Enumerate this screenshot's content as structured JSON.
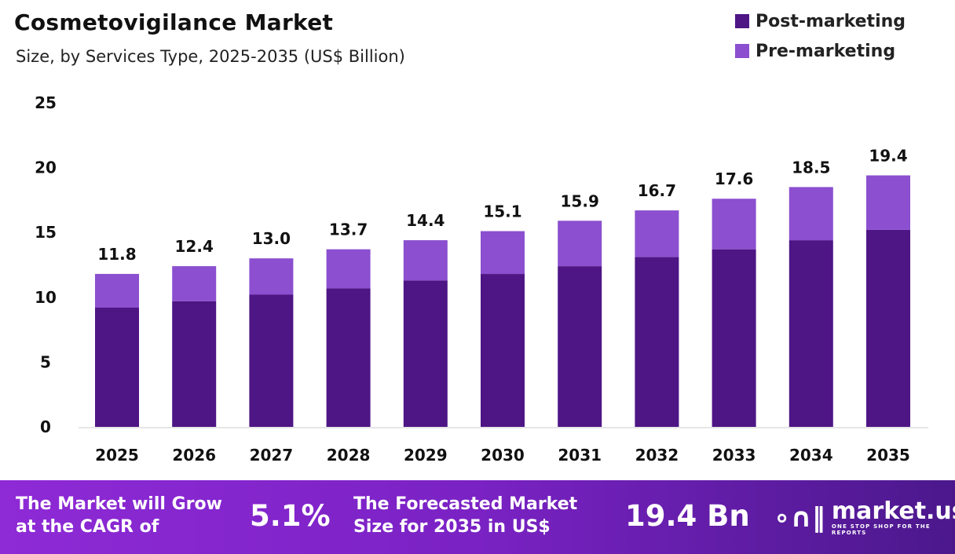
{
  "chart_data": {
    "type": "bar",
    "stacked": true,
    "title": "Cosmetovigilance Market",
    "subtitle": "Size, by Services Type, 2025-2035 (US$ Billion)",
    "categories": [
      "2025",
      "2026",
      "2027",
      "2028",
      "2029",
      "2030",
      "2031",
      "2032",
      "2033",
      "2034",
      "2035"
    ],
    "series": [
      {
        "name": "Post-marketing",
        "color": "#4e1585",
        "values": [
          9.2,
          9.7,
          10.2,
          10.7,
          11.3,
          11.8,
          12.4,
          13.1,
          13.7,
          14.4,
          15.2
        ]
      },
      {
        "name": "Pre-marketing",
        "color": "#8b4fcf",
        "values": [
          2.6,
          2.7,
          2.8,
          3.0,
          3.1,
          3.3,
          3.5,
          3.6,
          3.9,
          4.1,
          4.2
        ]
      }
    ],
    "totals": [
      "11.8",
      "12.4",
      "13.0",
      "13.7",
      "14.4",
      "15.1",
      "15.9",
      "16.7",
      "17.6",
      "18.5",
      "19.4"
    ],
    "ylim": [
      0,
      25
    ],
    "yticks": [
      "0",
      "5",
      "10",
      "15",
      "20",
      "25"
    ],
    "grid": false,
    "legend": "top-right"
  },
  "footer": {
    "cagr_label_1": "The Market will Grow",
    "cagr_label_2": "at the CAGR of",
    "cagr_value": "5.1%",
    "forecast_label_1": "The Forecasted Market",
    "forecast_label_2": "Size for 2035 in US$",
    "forecast_value": "19.4 Bn",
    "logo_name": "market.us",
    "logo_tagline": "ONE STOP SHOP FOR THE REPORTS"
  }
}
